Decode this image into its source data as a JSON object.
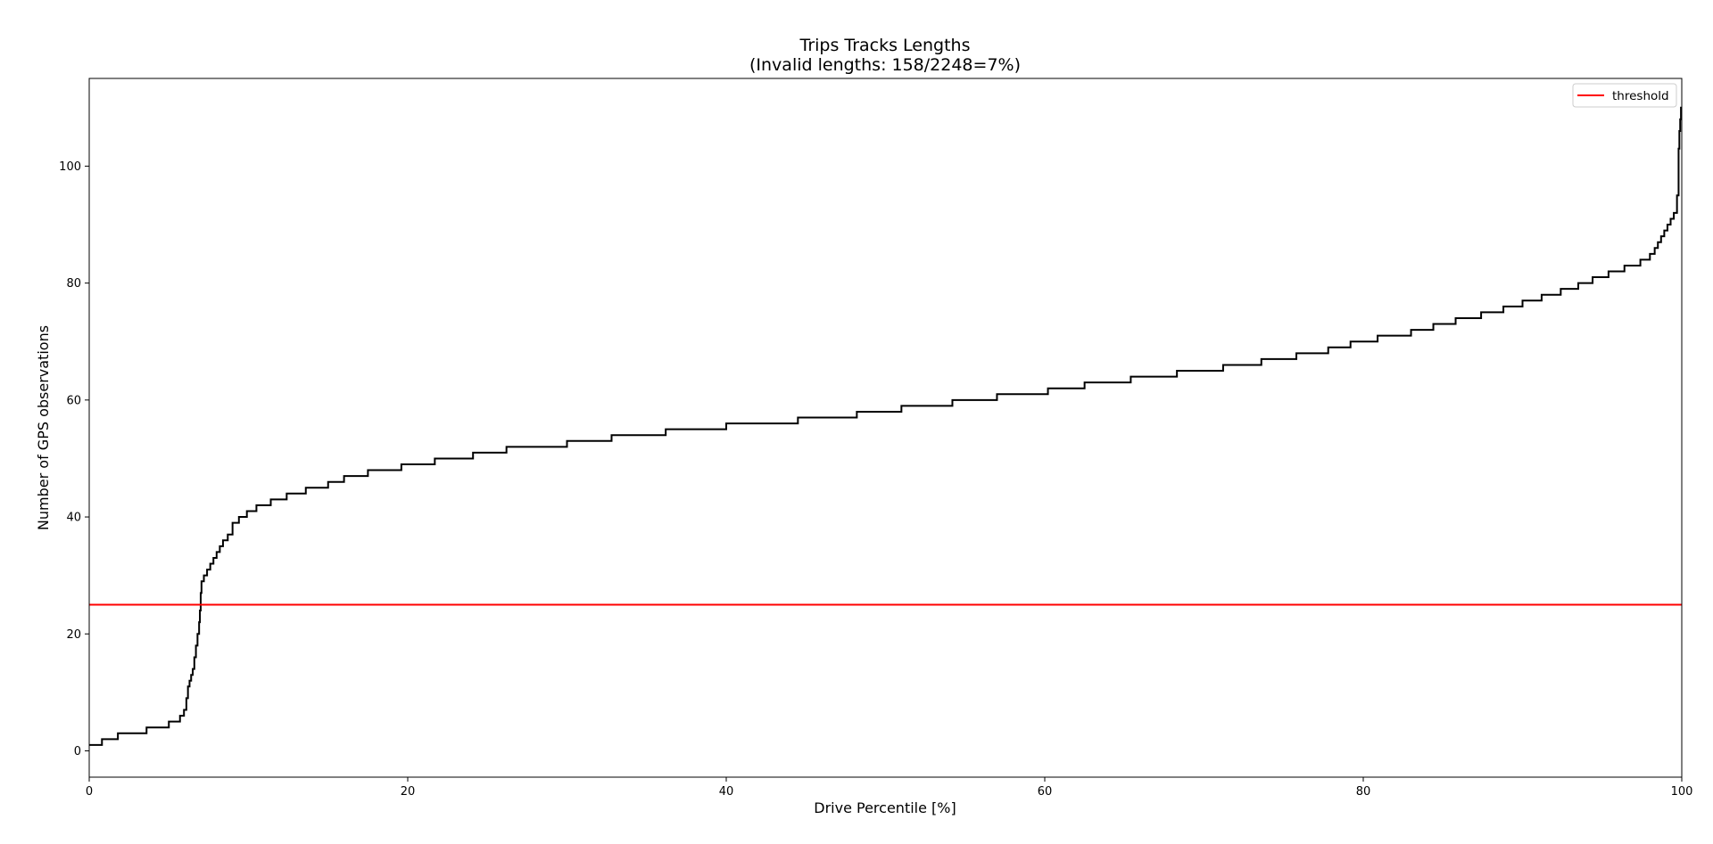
{
  "chart_data": {
    "type": "line",
    "title": "Trips Tracks Lengths",
    "subtitle": "(Invalid lengths: 158/2248=7%)",
    "xlabel": "Drive Percentile [%]",
    "ylabel": "Number of GPS observations",
    "xlim": [
      0,
      100
    ],
    "ylim": [
      -4.5,
      115
    ],
    "xticks": [
      0,
      20,
      40,
      60,
      80,
      100
    ],
    "yticks": [
      0,
      20,
      40,
      60,
      80,
      100
    ],
    "grid": false,
    "legend": {
      "position": "top-right",
      "entries": [
        "threshold"
      ]
    },
    "threshold": {
      "name": "threshold",
      "y": 25,
      "color": "#ff0000"
    },
    "series": [
      {
        "color": "#000000",
        "step": true,
        "x": [
          0,
          0.8,
          1.8,
          3.6,
          5.0,
          5.7,
          5.95,
          6.1,
          6.2,
          6.3,
          6.4,
          6.5,
          6.6,
          6.7,
          6.8,
          6.9,
          6.95,
          7.0,
          7.05,
          7.1,
          7.2,
          7.4,
          7.6,
          7.8,
          8.0,
          8.2,
          8.4,
          8.7,
          9.0,
          9.4,
          9.9,
          10.5,
          11.4,
          12.4,
          13.6,
          15.0,
          16.0,
          17.5,
          19.6,
          21.7,
          24.1,
          26.2,
          30.0,
          32.8,
          36.2,
          40.0,
          44.5,
          48.2,
          51.0,
          54.2,
          57.0,
          60.2,
          62.5,
          65.4,
          68.3,
          71.2,
          73.6,
          75.8,
          77.8,
          79.2,
          80.9,
          83.0,
          84.4,
          85.8,
          87.4,
          88.8,
          90.0,
          91.2,
          92.4,
          93.5,
          94.4,
          95.4,
          96.4,
          97.4,
          98.0,
          98.3,
          98.5,
          98.7,
          98.9,
          99.1,
          99.3,
          99.5,
          99.7,
          99.8,
          99.85,
          99.9,
          99.95,
          100
        ],
        "y": [
          1,
          2,
          3,
          4,
          5,
          6,
          7,
          9,
          11,
          12,
          13,
          14,
          16,
          18,
          20,
          22,
          24,
          27,
          29,
          29,
          30,
          31,
          32,
          33,
          34,
          35,
          36,
          37,
          39,
          40,
          41,
          42,
          43,
          44,
          45,
          46,
          47,
          48,
          49,
          50,
          51,
          52,
          53,
          54,
          55,
          56,
          57,
          58,
          59,
          60,
          61,
          62,
          63,
          64,
          65,
          66,
          67,
          68,
          69,
          70,
          71,
          72,
          73,
          74,
          75,
          76,
          77,
          78,
          79,
          80,
          81,
          82,
          83,
          84,
          85,
          86,
          87,
          88,
          89,
          90,
          91,
          92,
          95,
          103,
          106,
          108,
          110,
          110
        ]
      }
    ]
  }
}
